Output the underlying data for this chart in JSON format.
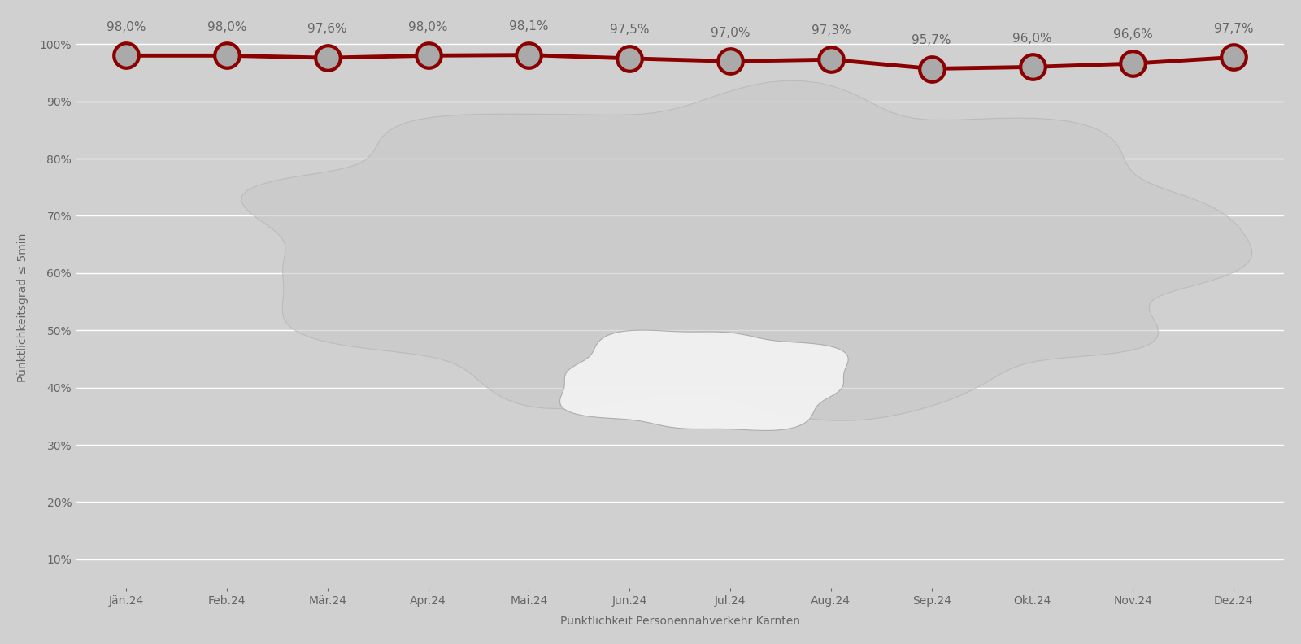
{
  "months": [
    "Jän.24",
    "Feb.24",
    "Mär.24",
    "Apr.24",
    "Mai.24",
    "Jun.24",
    "Jul.24",
    "Aug.24",
    "Sep.24",
    "Okt.24",
    "Nov.24",
    "Dez.24"
  ],
  "values": [
    98.0,
    98.0,
    97.6,
    98.0,
    98.1,
    97.5,
    97.0,
    97.3,
    95.7,
    96.0,
    96.6,
    97.7
  ],
  "labels": [
    "98,0%",
    "98,0%",
    "97,6%",
    "98,0%",
    "98,1%",
    "97,5%",
    "97,0%",
    "97,3%",
    "95,7%",
    "96,0%",
    "96,6%",
    "97,7%"
  ],
  "line_color": "#8B0000",
  "marker_face_color": "#AAAAAA",
  "marker_edge_color": "#8B0000",
  "background_color": "#D0D0D0",
  "grid_color": "#BBBBBB",
  "ylabel": "Pünktlichkeitsgrad ≤ 5min",
  "xlabel": "Pünktlichkeit Personennahverkehr Kärnten",
  "yticks": [
    10,
    20,
    30,
    40,
    50,
    60,
    70,
    80,
    90,
    100
  ],
  "ylim": [
    5,
    103
  ],
  "title_fontsize": 11,
  "label_fontsize": 10,
  "tick_fontsize": 10,
  "annotation_fontsize": 11,
  "annotation_color": "#666666",
  "tick_color": "#666666",
  "austria_color": "#B8B8B8",
  "carinthia_color": "#F0F0F0"
}
